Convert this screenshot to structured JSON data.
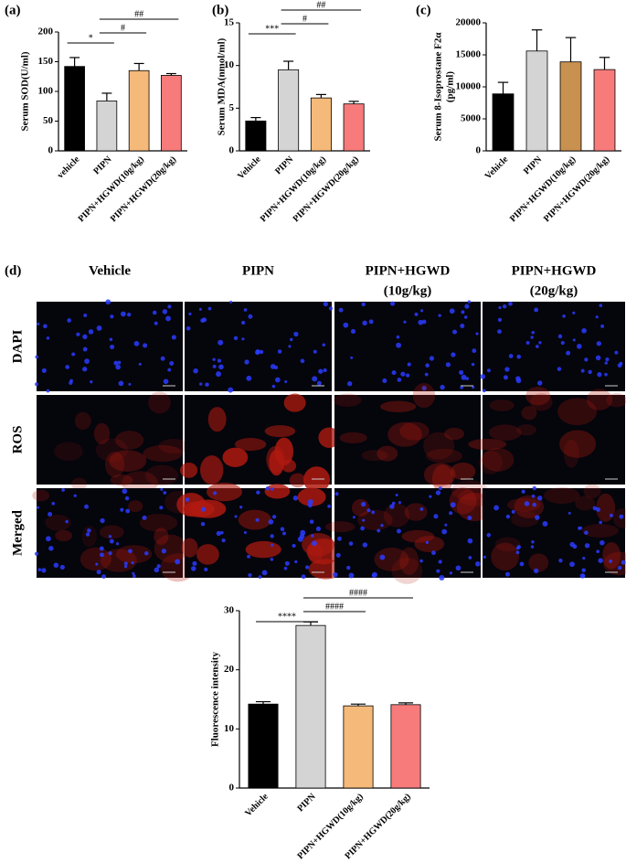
{
  "chart_data": [
    {
      "type": "bar",
      "label": "(a)",
      "ylabel": "Serum SOD(U/ml)",
      "categories": [
        "vehicle",
        "PIPN",
        "PIPN+HGWD(10g/kg)",
        "PIPN+HGWD(20g/kg)"
      ],
      "values": [
        142,
        84,
        135,
        127
      ],
      "errors": [
        15,
        13,
        12,
        3
      ],
      "colors": [
        "#000000",
        "#d4d4d4",
        "#f5b97a",
        "#f77b7b"
      ],
      "ylim": [
        0,
        200
      ],
      "yticks": [
        0,
        50,
        100,
        150,
        200
      ],
      "annotations": [
        "*",
        "#",
        "##"
      ]
    },
    {
      "type": "bar",
      "label": "(b)",
      "ylabel": "Serum MDA(nmol/ml)",
      "categories": [
        "Vehicle",
        "PIPN",
        "PIPN+HGWD(10g/kg)",
        "PIPN+HGWD(20g/kg)"
      ],
      "values": [
        3.5,
        9.5,
        6.2,
        5.5
      ],
      "errors": [
        0.4,
        1.0,
        0.4,
        0.3
      ],
      "colors": [
        "#000000",
        "#d4d4d4",
        "#f5b97a",
        "#f77b7b"
      ],
      "ylim": [
        0,
        15
      ],
      "yticks": [
        0,
        5,
        10,
        15
      ],
      "annotations": [
        "***",
        "#",
        "##"
      ]
    },
    {
      "type": "bar",
      "label": "(c)",
      "ylabel": [
        "Serum 8-Isoprostane F2α",
        "(pg/ml)"
      ],
      "categories": [
        "Vehicle",
        "PIPN",
        "PIPN+HGWD(10g/kg)",
        "PIPN+HGWD(20g/kg)"
      ],
      "values": [
        8900,
        15600,
        13900,
        12700
      ],
      "errors": [
        1800,
        3300,
        3800,
        1900
      ],
      "colors": [
        "#000000",
        "#d4d4d4",
        "#c8914f",
        "#f77b7b"
      ],
      "ylim": [
        0,
        20000
      ],
      "yticks": [
        0,
        5000,
        10000,
        15000,
        20000
      ]
    },
    {
      "type": "bar",
      "ylabel": "Fluorescence intensity",
      "categories": [
        "Vehicle",
        "PIPN",
        "PIPN+HGWD(10g/kg)",
        "PIPN+HGWD(20g/kg)"
      ],
      "values": [
        14.2,
        27.5,
        13.9,
        14.1
      ],
      "errors": [
        0.4,
        0.6,
        0.3,
        0.3
      ],
      "colors": [
        "#000000",
        "#d4d4d4",
        "#f5b97a",
        "#f77b7b"
      ],
      "ylim": [
        0,
        30
      ],
      "yticks": [
        0,
        10,
        20,
        30
      ],
      "annotations": [
        "****",
        "####",
        "####"
      ]
    }
  ],
  "panel_d": {
    "label": "(d)",
    "columns": [
      [
        "Vehicle"
      ],
      [
        "PIPN"
      ],
      [
        "PIPN+HGWD",
        "(10g/kg)"
      ],
      [
        "PIPN+HGWD",
        "(20g/kg)"
      ]
    ],
    "rows": [
      "DAPI",
      "ROS",
      "Merged"
    ]
  }
}
